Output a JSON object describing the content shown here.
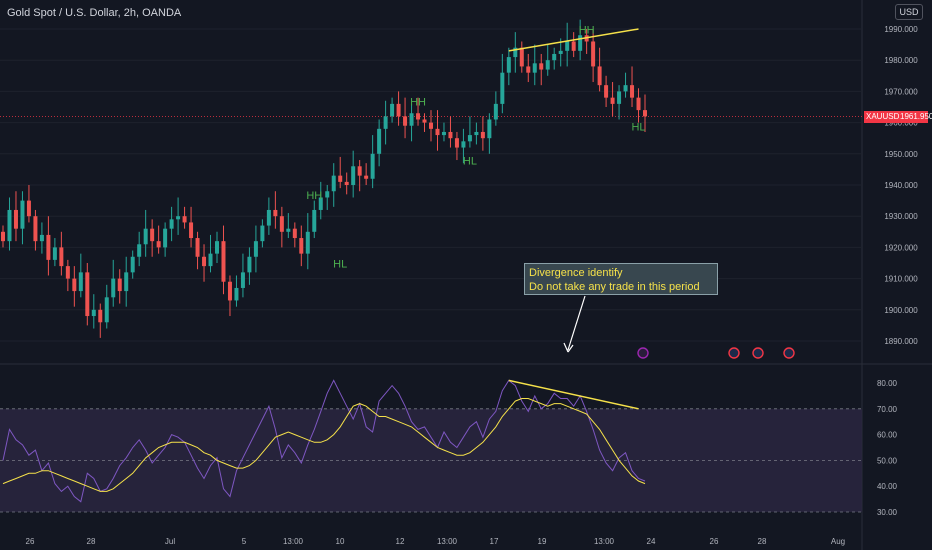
{
  "header": {
    "title": "Gold Spot / U.S. Dollar, 2h, OANDA",
    "currency_button": "USD"
  },
  "annotation": {
    "line1": "Divergence identify",
    "line2": "Do not take any trade in this period"
  },
  "price_tag": {
    "symbol": "XAUUSD",
    "value": "1961.950"
  },
  "colors": {
    "background": "#131722",
    "up": "#26a69a",
    "down": "#ef5350",
    "pattern_label": "#4caf50",
    "trendline": "#f5e14a",
    "rsi_line": "#7e57c2",
    "rsi_ma": "#f5e14a",
    "rsi_band": "#2a2640"
  },
  "chart_data": [
    {
      "type": "candlestick",
      "title": "Gold Spot / U.S. Dollar, 2h, OANDA",
      "y_ticks": [
        "1990.000",
        "1980.000",
        "1970.000",
        "1960.000",
        "1950.000",
        "1940.000",
        "1930.000",
        "1920.000",
        "1910.000",
        "1900.000",
        "1890.000"
      ],
      "ylim": [
        1885,
        1995
      ],
      "last_price": 1961.95,
      "x_ticks": [
        "26",
        "28",
        "Jul",
        "5",
        "13:00",
        "10",
        "12",
        "13:00",
        "17",
        "19",
        "13:00",
        "24",
        "26",
        "28",
        "Aug"
      ],
      "pattern_labels": [
        {
          "text": "HH",
          "value": 1935.5
        },
        {
          "text": "HL",
          "value": 1913.5
        },
        {
          "text": "HH",
          "value": 1965.5
        },
        {
          "text": "HL",
          "value": 1946.5
        },
        {
          "text": "HH",
          "value": 1988.5
        },
        {
          "text": "HL",
          "value": 1957.5
        }
      ],
      "closes": [
        1922,
        1932,
        1926,
        1935,
        1930,
        1922,
        1924,
        1916,
        1920,
        1914,
        1910,
        1906,
        1912,
        1898,
        1900,
        1896,
        1904,
        1910,
        1906,
        1912,
        1917,
        1921,
        1926,
        1922,
        1920,
        1926,
        1929,
        1930,
        1928,
        1923,
        1917,
        1914,
        1918,
        1922,
        1909,
        1903,
        1907,
        1912,
        1917,
        1922,
        1927,
        1932,
        1930,
        1925,
        1926,
        1923,
        1918,
        1925,
        1932,
        1936,
        1938,
        1943,
        1941,
        1940,
        1946,
        1943,
        1942,
        1950,
        1958,
        1962,
        1966,
        1962,
        1959,
        1963,
        1961,
        1960,
        1958,
        1956,
        1957,
        1955,
        1952,
        1954,
        1956,
        1957,
        1955,
        1961,
        1966,
        1976,
        1981,
        1984,
        1978,
        1976,
        1979,
        1977,
        1980,
        1982,
        1983,
        1986,
        1983,
        1988,
        1986,
        1978,
        1972,
        1968,
        1966,
        1970,
        1972,
        1968,
        1964,
        1962
      ],
      "series": [
        {
          "name": "",
          "values": [],
          "type": "candles"
        }
      ]
    },
    {
      "type": "line",
      "y_ticks": [
        "80.00",
        "70.00",
        "60.00",
        "50.00",
        "40.00",
        "30.00"
      ],
      "ylim": [
        28,
        84
      ],
      "bands": [
        30,
        50,
        70
      ],
      "trendline": {
        "from": 81,
        "to": 70
      },
      "series": [
        {
          "name": "",
          "values": [
            50,
            62,
            58,
            56,
            52,
            54,
            46,
            49,
            41,
            38,
            40,
            36,
            34,
            45,
            43,
            38,
            39,
            43,
            48,
            51,
            55,
            58,
            54,
            49,
            52,
            55,
            60,
            59,
            57,
            52,
            47,
            43,
            48,
            51,
            39,
            36,
            46,
            51,
            56,
            61,
            66,
            71,
            62,
            51,
            56,
            53,
            49,
            56,
            62,
            69,
            76,
            81,
            76,
            71,
            66,
            72,
            63,
            61,
            73,
            76,
            79,
            76,
            71,
            65,
            62,
            63,
            59,
            55,
            61,
            57,
            55,
            59,
            63,
            65,
            59,
            66,
            69,
            77,
            81,
            79,
            73,
            69,
            75,
            70,
            72,
            76,
            74,
            74,
            71,
            75,
            69,
            62,
            54,
            49,
            46,
            51,
            53,
            46,
            43,
            42
          ]
        },
        {
          "name": "",
          "values": [
            41,
            42,
            43,
            44,
            45,
            45,
            46,
            46,
            45,
            44,
            43,
            42,
            41,
            40,
            39,
            38,
            38,
            39,
            41,
            43,
            45,
            48,
            51,
            53,
            55,
            56,
            57,
            57,
            57,
            56,
            55,
            53,
            52,
            50,
            49,
            48,
            47,
            47,
            48,
            50,
            53,
            56,
            59,
            60,
            61,
            60,
            59,
            58,
            57,
            57,
            58,
            60,
            63,
            67,
            71,
            72,
            71,
            69,
            67,
            67,
            66,
            65,
            64,
            63,
            61,
            59,
            57,
            55,
            54,
            53,
            52,
            52,
            53,
            55,
            57,
            60,
            63,
            67,
            70,
            73,
            74,
            74,
            73,
            72,
            71,
            72,
            72,
            71,
            70,
            69,
            68,
            65,
            62,
            58,
            54,
            50,
            47,
            44,
            42,
            41
          ]
        }
      ]
    }
  ]
}
